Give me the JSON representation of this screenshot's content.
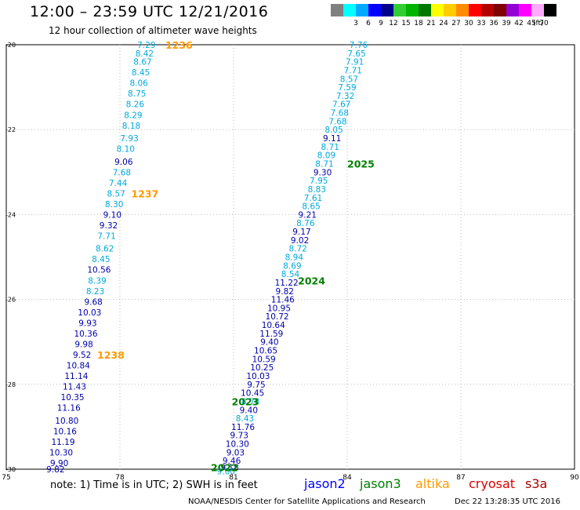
{
  "header": {
    "title": "12:00 – 23:59 UTC 12/21/2016",
    "subtitle": "12 hour collection of altimeter wave heights"
  },
  "color_scale": {
    "bins": [
      {
        "label": "",
        "color": "#808080"
      },
      {
        "label": "3",
        "color": "#00ffff"
      },
      {
        "label": "6",
        "color": "#00aaff"
      },
      {
        "label": "9",
        "color": "#0000ff"
      },
      {
        "label": "12",
        "color": "#00008b"
      },
      {
        "label": "15",
        "color": "#32cd32"
      },
      {
        "label": "18",
        "color": "#00b400"
      },
      {
        "label": "21",
        "color": "#007800"
      },
      {
        "label": "24",
        "color": "#ffff00"
      },
      {
        "label": "27",
        "color": "#ffcc00"
      },
      {
        "label": "30",
        "color": "#ff8c00"
      },
      {
        "label": "33",
        "color": "#ff0000"
      },
      {
        "label": "36",
        "color": "#b40000"
      },
      {
        "label": "39",
        "color": "#800000"
      },
      {
        "label": "42",
        "color": "#9400d3"
      },
      {
        "label": "45",
        "color": "#ff00ff"
      },
      {
        "label": "70",
        "color": "#ffaaff"
      },
      {
        "label": "",
        "color": "#000000"
      }
    ],
    "unit": "(ft)"
  },
  "colors": {
    "light": "#00aadd",
    "dark": "#0000aa",
    "jason2": "#0000ff",
    "jason3": "#008000",
    "altika": "#ff9900",
    "cryosat": "#dd0000",
    "s3a": "#aa0000",
    "grid": "#bbbbbb"
  },
  "chart_data": {
    "type": "scatter",
    "title": "12:00 – 23:59 UTC 12/21/2016",
    "subtitle": "12 hour collection of altimeter wave heights",
    "xlim": [
      75,
      90
    ],
    "ylim": [
      -30,
      -20
    ],
    "x_ticks": [
      "75",
      "78",
      "81",
      "84",
      "87",
      "90"
    ],
    "y_ticks": [
      "-20",
      "-22",
      "-24",
      "-26",
      "-28",
      "-30"
    ],
    "grid": true,
    "tracks": [
      {
        "satellite": "altika",
        "pass": "1236",
        "label_at": [
          79.2,
          -20.0
        ],
        "points": [
          {
            "x": 78.7,
            "y": -20.0,
            "v": "7.29",
            "c": "light"
          },
          {
            "x": 78.65,
            "y": -20.2,
            "v": "8.42",
            "c": "light"
          },
          {
            "x": 78.6,
            "y": -20.4,
            "v": "8.67",
            "c": "light"
          },
          {
            "x": 78.55,
            "y": -20.65,
            "v": "8.45",
            "c": "light"
          },
          {
            "x": 78.5,
            "y": -20.9,
            "v": "8.06",
            "c": "light"
          },
          {
            "x": 78.45,
            "y": -21.15,
            "v": "8.75",
            "c": "light"
          },
          {
            "x": 78.4,
            "y": -21.4,
            "v": "8.26",
            "c": "light"
          },
          {
            "x": 78.35,
            "y": -21.65,
            "v": "8.29",
            "c": "light"
          },
          {
            "x": 78.3,
            "y": -21.9,
            "v": "8.18",
            "c": "light"
          },
          {
            "x": 78.25,
            "y": -22.2,
            "v": "7.93",
            "c": "light"
          },
          {
            "x": 78.15,
            "y": -22.45,
            "v": "8.10",
            "c": "light"
          },
          {
            "x": 78.1,
            "y": -22.75,
            "v": "9.06",
            "c": "dark"
          },
          {
            "x": 78.05,
            "y": -23.0,
            "v": "7.68",
            "c": "light"
          },
          {
            "x": 77.95,
            "y": -23.25,
            "v": "7.44",
            "c": "light"
          },
          {
            "x": 77.9,
            "y": -23.5,
            "v": "8.57",
            "c": "light"
          },
          {
            "x": 77.85,
            "y": -23.75,
            "v": "8.30",
            "c": "light"
          },
          {
            "x": 77.8,
            "y": -24.0,
            "v": "9.10",
            "c": "dark"
          },
          {
            "x": 77.7,
            "y": -24.25,
            "v": "9.32",
            "c": "dark"
          },
          {
            "x": 77.65,
            "y": -24.5,
            "v": "7.71",
            "c": "light"
          },
          {
            "x": 77.6,
            "y": -24.8,
            "v": "8.62",
            "c": "light"
          },
          {
            "x": 77.5,
            "y": -25.05,
            "v": "8.45",
            "c": "light"
          },
          {
            "x": 77.45,
            "y": -25.3,
            "v": "10.56",
            "c": "dark"
          },
          {
            "x": 77.4,
            "y": -25.55,
            "v": "8.39",
            "c": "light"
          },
          {
            "x": 77.35,
            "y": -25.8,
            "v": "8.23",
            "c": "light"
          },
          {
            "x": 77.3,
            "y": -26.05,
            "v": "9.68",
            "c": "dark"
          },
          {
            "x": 77.2,
            "y": -26.3,
            "v": "10.03",
            "c": "dark"
          },
          {
            "x": 77.15,
            "y": -26.55,
            "v": "9.93",
            "c": "dark"
          },
          {
            "x": 77.1,
            "y": -26.8,
            "v": "10.36",
            "c": "dark"
          },
          {
            "x": 77.05,
            "y": -27.05,
            "v": "9.98",
            "c": "dark"
          },
          {
            "x": 77.0,
            "y": -27.3,
            "v": "9.52",
            "c": "dark"
          },
          {
            "x": 76.9,
            "y": -27.55,
            "v": "10.84",
            "c": "dark"
          },
          {
            "x": 76.85,
            "y": -27.8,
            "v": "11.14",
            "c": "dark"
          },
          {
            "x": 76.8,
            "y": -28.05,
            "v": "11.43",
            "c": "dark"
          },
          {
            "x": 76.75,
            "y": -28.3,
            "v": "10.35",
            "c": "dark"
          },
          {
            "x": 76.65,
            "y": -28.55,
            "v": "11.16",
            "c": "dark"
          },
          {
            "x": 76.6,
            "y": -28.85,
            "v": "10.80",
            "c": "dark"
          },
          {
            "x": 76.55,
            "y": -29.1,
            "v": "10.16",
            "c": "dark"
          },
          {
            "x": 76.5,
            "y": -29.35,
            "v": "11.19",
            "c": "dark"
          },
          {
            "x": 76.45,
            "y": -29.6,
            "v": "10.30",
            "c": "dark"
          },
          {
            "x": 76.4,
            "y": -29.85,
            "v": "9.90",
            "c": "dark"
          },
          {
            "x": 76.3,
            "y": -30.0,
            "v": "9.82",
            "c": "dark"
          }
        ]
      },
      {
        "satellite": "altika",
        "pass": "1237",
        "label_at": [
          78.3,
          -23.5
        ],
        "points": []
      },
      {
        "satellite": "altika",
        "pass": "1238",
        "label_at": [
          77.4,
          -27.3
        ],
        "points": []
      },
      {
        "satellite": "jason3",
        "pass": "2025",
        "label_at": [
          84.0,
          -22.8
        ],
        "points": [
          {
            "x": 84.3,
            "y": -20.0,
            "v": "7.76",
            "c": "light"
          },
          {
            "x": 84.25,
            "y": -20.2,
            "v": "7.65",
            "c": "light"
          },
          {
            "x": 84.2,
            "y": -20.4,
            "v": "7.91",
            "c": "light"
          },
          {
            "x": 84.15,
            "y": -20.6,
            "v": "7.71",
            "c": "light"
          },
          {
            "x": 84.05,
            "y": -20.8,
            "v": "8.57",
            "c": "light"
          },
          {
            "x": 84.0,
            "y": -21.0,
            "v": "7.59",
            "c": "light"
          },
          {
            "x": 83.95,
            "y": -21.2,
            "v": "7.32",
            "c": "light"
          },
          {
            "x": 83.85,
            "y": -21.4,
            "v": "7.67",
            "c": "light"
          },
          {
            "x": 83.8,
            "y": -21.6,
            "v": "7.68",
            "c": "light"
          },
          {
            "x": 83.75,
            "y": -21.8,
            "v": "7.68",
            "c": "light"
          },
          {
            "x": 83.65,
            "y": -22.0,
            "v": "8.05",
            "c": "light"
          },
          {
            "x": 83.6,
            "y": -22.2,
            "v": "9.11",
            "c": "dark"
          },
          {
            "x": 83.55,
            "y": -22.4,
            "v": "8.71",
            "c": "light"
          },
          {
            "x": 83.45,
            "y": -22.6,
            "v": "8.09",
            "c": "light"
          },
          {
            "x": 83.4,
            "y": -22.8,
            "v": "8.71",
            "c": "light"
          },
          {
            "x": 83.35,
            "y": -23.0,
            "v": "9.30",
            "c": "dark"
          },
          {
            "x": 83.25,
            "y": -23.2,
            "v": "7.95",
            "c": "light"
          },
          {
            "x": 83.2,
            "y": -23.4,
            "v": "8.83",
            "c": "light"
          },
          {
            "x": 83.1,
            "y": -23.6,
            "v": "7.61",
            "c": "light"
          },
          {
            "x": 83.05,
            "y": -23.8,
            "v": "8.65",
            "c": "light"
          }
        ]
      },
      {
        "satellite": "jason3",
        "pass": "2024",
        "label_at": [
          82.7,
          -25.55
        ],
        "points": [
          {
            "x": 82.95,
            "y": -24.0,
            "v": "9.21",
            "c": "dark"
          },
          {
            "x": 82.9,
            "y": -24.2,
            "v": "8.76",
            "c": "light"
          },
          {
            "x": 82.8,
            "y": -24.4,
            "v": "9.17",
            "c": "dark"
          },
          {
            "x": 82.75,
            "y": -24.6,
            "v": "9.02",
            "c": "dark"
          },
          {
            "x": 82.7,
            "y": -24.8,
            "v": "8.72",
            "c": "light"
          },
          {
            "x": 82.6,
            "y": -25.0,
            "v": "8.94",
            "c": "light"
          },
          {
            "x": 82.55,
            "y": -25.2,
            "v": "8.69",
            "c": "light"
          },
          {
            "x": 82.5,
            "y": -25.4,
            "v": "8.54",
            "c": "light"
          },
          {
            "x": 82.4,
            "y": -25.6,
            "v": "11.22",
            "c": "dark"
          },
          {
            "x": 82.35,
            "y": -25.8,
            "v": "9.82",
            "c": "dark"
          },
          {
            "x": 82.3,
            "y": -26.0,
            "v": "11.46",
            "c": "dark"
          },
          {
            "x": 82.2,
            "y": -26.2,
            "v": "10.95",
            "c": "dark"
          },
          {
            "x": 82.15,
            "y": -26.4,
            "v": "10.72",
            "c": "dark"
          },
          {
            "x": 82.05,
            "y": -26.6,
            "v": "10.64",
            "c": "dark"
          },
          {
            "x": 82.0,
            "y": -26.8,
            "v": "11.59",
            "c": "dark"
          },
          {
            "x": 81.95,
            "y": -27.0,
            "v": "9.40",
            "c": "dark"
          },
          {
            "x": 81.85,
            "y": -27.2,
            "v": "10.65",
            "c": "dark"
          },
          {
            "x": 81.8,
            "y": -27.4,
            "v": "10.59",
            "c": "dark"
          },
          {
            "x": 81.75,
            "y": -27.6,
            "v": "10.25",
            "c": "dark"
          },
          {
            "x": 81.65,
            "y": -27.8,
            "v": "10.03",
            "c": "dark"
          }
        ]
      },
      {
        "satellite": "jason3",
        "pass": "2023",
        "label_at": [
          80.95,
          -28.4
        ],
        "points": [
          {
            "x": 81.6,
            "y": -28.0,
            "v": "9.75",
            "c": "dark"
          },
          {
            "x": 81.5,
            "y": -28.2,
            "v": "10.45",
            "c": "dark"
          },
          {
            "x": 81.45,
            "y": -28.4,
            "v": "8.78",
            "c": "light"
          },
          {
            "x": 81.4,
            "y": -28.6,
            "v": "9.40",
            "c": "dark"
          },
          {
            "x": 81.3,
            "y": -28.8,
            "v": "8.43",
            "c": "light"
          },
          {
            "x": 81.25,
            "y": -29.0,
            "v": "11.76",
            "c": "dark"
          }
        ]
      },
      {
        "satellite": "jason3",
        "pass": "2022",
        "label_at": [
          80.4,
          -29.95
        ],
        "points": [
          {
            "x": 81.15,
            "y": -29.2,
            "v": "9.73",
            "c": "dark"
          },
          {
            "x": 81.1,
            "y": -29.4,
            "v": "10.30",
            "c": "dark"
          },
          {
            "x": 81.05,
            "y": -29.6,
            "v": "9.03",
            "c": "dark"
          },
          {
            "x": 80.95,
            "y": -29.8,
            "v": "9.46",
            "c": "dark"
          },
          {
            "x": 80.9,
            "y": -29.95,
            "v": "9.18",
            "c": "dark"
          },
          {
            "x": 80.8,
            "y": -30.05,
            "v": "9.00",
            "c": "light"
          }
        ]
      }
    ]
  },
  "footer": {
    "note": "note:  1) Time is in UTC;  2) SWH is in feet",
    "legend": [
      {
        "name": "jason2",
        "color": "#0000ff"
      },
      {
        "name": "jason3",
        "color": "#008000"
      },
      {
        "name": "altika",
        "color": "#ff9900"
      },
      {
        "name": "cryosat",
        "color": "#dd0000"
      },
      {
        "name": "s3a",
        "color": "#aa0000"
      }
    ],
    "credit": "NOAA/NESDIS Center for Satellite Applications and Research",
    "timestamp": "Dec 22 13:28:35 UTC 2016"
  }
}
